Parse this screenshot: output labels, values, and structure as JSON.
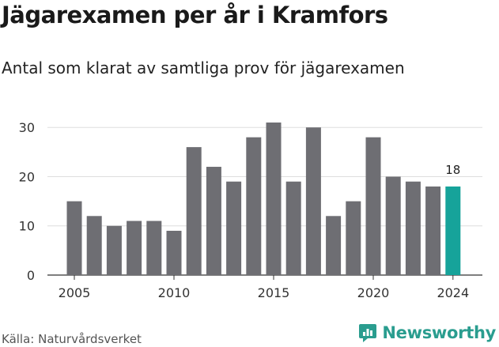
{
  "header": {
    "title": "Jägarexamen per år i Kramfors",
    "subtitle": "Antal som klarat av samtliga prov för jägarexamen"
  },
  "footer": {
    "source": "Källa: Naturvårdsverket",
    "brand": "Newsworthy",
    "brand_icon": "newsworthy-logo-icon"
  },
  "colors": {
    "bar": "#6e6e73",
    "highlight": "#16a39a",
    "grid": "#dddddd",
    "brand": "#2a9d8f"
  },
  "chart_data": {
    "type": "bar",
    "title": "Jägarexamen per år i Kramfors",
    "subtitle": "Antal som klarat av samtliga prov för jägarexamen",
    "xlabel": "",
    "ylabel": "",
    "categories": [
      2005,
      2006,
      2007,
      2008,
      2009,
      2010,
      2011,
      2012,
      2013,
      2014,
      2015,
      2016,
      2017,
      2018,
      2019,
      2020,
      2021,
      2022,
      2023,
      2024
    ],
    "values": [
      15,
      12,
      10,
      11,
      11,
      9,
      26,
      22,
      19,
      28,
      31,
      19,
      30,
      12,
      15,
      28,
      20,
      19,
      18,
      18
    ],
    "highlight_category": 2024,
    "data_labels": [
      {
        "category": 2024,
        "text": "18"
      }
    ],
    "ylim": [
      0,
      31
    ],
    "yticks": [
      0,
      10,
      20,
      30
    ],
    "xticks": [
      2005,
      2010,
      2015,
      2020,
      2024
    ],
    "grid": true,
    "legend": "none"
  }
}
